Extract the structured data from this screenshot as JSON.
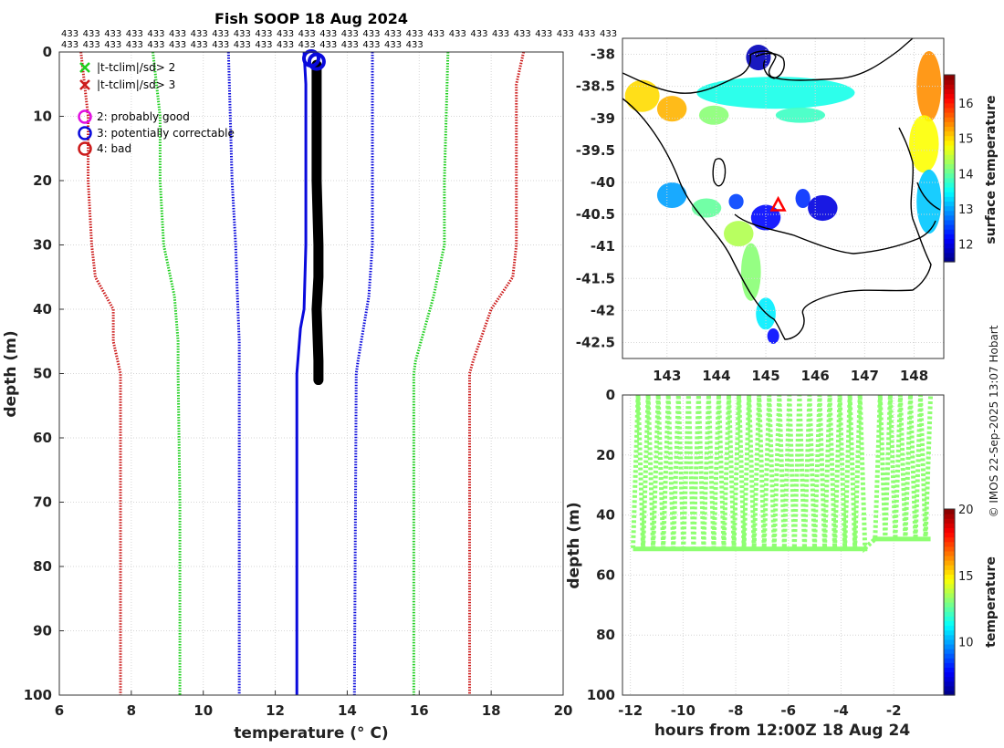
{
  "credit": "© IMOS 22-Sep-2025 13:07 Hobart",
  "colors": {
    "green": "#1fcf1f",
    "blue": "#0a0adc",
    "red": "#cc1b1b",
    "magenta": "#e010e0",
    "land": "#000000"
  },
  "chart_data": [
    {
      "id": "profile",
      "type": "line",
      "title": "Fish SOOP 18 Aug 2024",
      "xlabel": "temperature (° C)",
      "ylabel": "depth (m)",
      "xlim": [
        6,
        20
      ],
      "ylim": [
        0,
        100
      ],
      "y_reversed": true,
      "xticks": [
        "6",
        "8",
        "10",
        "12",
        "14",
        "16",
        "18",
        "20"
      ],
      "yticks": [
        "0",
        "10",
        "20",
        "30",
        "40",
        "50",
        "60",
        "70",
        "80",
        "90",
        "100"
      ],
      "count_rows": [
        [
          "433",
          "433",
          "433",
          "433",
          "433",
          "433",
          "433",
          "433",
          "433",
          "433",
          "433",
          "433",
          "433",
          "433",
          "433",
          "433",
          "433",
          "433",
          "433",
          "433",
          "433",
          "433",
          "433",
          "433",
          "433",
          "433"
        ],
        [
          "433",
          "433",
          "433",
          "433",
          "433",
          "433",
          "433",
          "433",
          "433",
          "433",
          "433",
          "433",
          "433",
          "433",
          "433",
          "433",
          "433"
        ]
      ],
      "legend": [
        {
          "marker": "x",
          "color": "green",
          "label": "|t-tclim|/sd> 2"
        },
        {
          "marker": "x",
          "color": "red",
          "label": "|t-tclim|/sd> 3"
        },
        {
          "marker": "o",
          "color": "magenta",
          "label": "2: probably good"
        },
        {
          "marker": "o",
          "color": "blue",
          "label": "3: potentially correctable"
        },
        {
          "marker": "o",
          "color": "red",
          "label": "4: bad"
        }
      ],
      "series": [
        {
          "name": "clim -3sd",
          "color": "red",
          "style": "dotted",
          "x": [
            6.6,
            6.8,
            6.8,
            6.9,
            7.0,
            7.5,
            7.5,
            7.7,
            7.7,
            7.7
          ],
          "y": [
            0,
            10,
            20,
            30,
            35,
            40,
            45,
            50,
            70,
            100
          ]
        },
        {
          "name": "clim -2sd",
          "color": "green",
          "style": "dotted",
          "x": [
            8.6,
            8.8,
            8.8,
            8.9,
            9.2,
            9.3,
            9.3,
            9.35,
            9.35
          ],
          "y": [
            0,
            10,
            20,
            30,
            38,
            45,
            50,
            70,
            100
          ]
        },
        {
          "name": "clim -1sd",
          "color": "blue",
          "style": "dotted",
          "x": [
            10.7,
            10.75,
            10.8,
            10.9,
            10.95,
            11.0,
            11.0,
            11.0
          ],
          "y": [
            0,
            10,
            20,
            30,
            38,
            45,
            50,
            100
          ]
        },
        {
          "name": "clim +1sd",
          "color": "blue",
          "style": "dotted",
          "x": [
            14.7,
            14.7,
            14.7,
            14.7,
            14.6,
            14.3,
            14.25,
            14.2
          ],
          "y": [
            0,
            10,
            20,
            30,
            38,
            48,
            50,
            100
          ]
        },
        {
          "name": "clim +2sd",
          "color": "green",
          "style": "dotted",
          "x": [
            16.8,
            16.75,
            16.7,
            16.7,
            16.4,
            15.9,
            15.85,
            15.85
          ],
          "y": [
            0,
            10,
            20,
            30,
            38,
            48,
            50,
            100
          ]
        },
        {
          "name": "clim +3sd",
          "color": "red",
          "style": "dotted",
          "x": [
            18.9,
            18.7,
            18.7,
            18.7,
            18.6,
            18.0,
            17.5,
            17.4,
            17.4
          ],
          "y": [
            0,
            5,
            20,
            30,
            35,
            40,
            48,
            50,
            100
          ]
        },
        {
          "name": "mean climatology",
          "color": "blue",
          "style": "solid",
          "x": [
            12.8,
            12.85,
            12.85,
            12.85,
            12.8,
            12.7,
            12.6,
            12.6,
            12.6
          ],
          "y": [
            0,
            5,
            20,
            30,
            40,
            43,
            50,
            90,
            100
          ]
        },
        {
          "name": "observed temperature",
          "color": "#000000",
          "style": "thick",
          "x": [
            13.15,
            13.15,
            13.15,
            13.2,
            13.2,
            13.15,
            13.2,
            13.2
          ],
          "y": [
            2,
            10,
            20,
            30,
            35,
            40,
            48,
            51
          ]
        }
      ],
      "flags": [
        {
          "label": "3: potentially correctable",
          "color": "blue",
          "x": 13.0,
          "y": 1.0
        },
        {
          "label": "3: potentially correctable",
          "color": "blue",
          "x": 13.15,
          "y": 1.5
        }
      ]
    },
    {
      "id": "sst_map",
      "type": "heatmap",
      "xticks": [
        "143",
        "144",
        "145",
        "146",
        "147",
        "148"
      ],
      "yticks": [
        "-38",
        "-38.5",
        "-39",
        "-39.5",
        "-40",
        "-40.5",
        "-41",
        "-41.5",
        "-42",
        "-42.5"
      ],
      "xlim": [
        142.1,
        148.6
      ],
      "ylim": [
        -42.75,
        -37.75
      ],
      "colorbar": {
        "label": "surface temperature",
        "range": [
          11.5,
          16.8
        ],
        "ticks": [
          "12",
          "13",
          "14",
          "15",
          "16"
        ]
      },
      "station_marker": {
        "label": "station",
        "lon": 145.25,
        "lat": -40.35
      },
      "sst_patches": [
        {
          "lon": 144.85,
          "lat": -38.05,
          "rx": 0.25,
          "ry": 0.2,
          "temp": 11.8
        },
        {
          "lon": 145.2,
          "lat": -38.6,
          "rx": 1.6,
          "ry": 0.25,
          "temp": 13.6
        },
        {
          "lon": 142.5,
          "lat": -38.65,
          "rx": 0.35,
          "ry": 0.25,
          "temp": 15.0
        },
        {
          "lon": 143.1,
          "lat": -38.85,
          "rx": 0.3,
          "ry": 0.2,
          "temp": 15.2
        },
        {
          "lon": 143.95,
          "lat": -38.95,
          "rx": 0.3,
          "ry": 0.15,
          "temp": 14.2
        },
        {
          "lon": 145.7,
          "lat": -38.95,
          "rx": 0.5,
          "ry": 0.12,
          "temp": 13.8
        },
        {
          "lon": 148.3,
          "lat": -38.5,
          "rx": 0.25,
          "ry": 0.55,
          "temp": 15.4
        },
        {
          "lon": 148.2,
          "lat": -39.4,
          "rx": 0.3,
          "ry": 0.45,
          "temp": 14.8
        },
        {
          "lon": 148.3,
          "lat": -40.3,
          "rx": 0.25,
          "ry": 0.5,
          "temp": 13.2
        },
        {
          "lon": 143.1,
          "lat": -40.2,
          "rx": 0.3,
          "ry": 0.2,
          "temp": 13.0
        },
        {
          "lon": 143.8,
          "lat": -40.4,
          "rx": 0.3,
          "ry": 0.15,
          "temp": 14.0
        },
        {
          "lon": 144.4,
          "lat": -40.3,
          "rx": 0.15,
          "ry": 0.12,
          "temp": 12.5
        },
        {
          "lon": 145.0,
          "lat": -40.55,
          "rx": 0.3,
          "ry": 0.2,
          "temp": 12.2
        },
        {
          "lon": 145.75,
          "lat": -40.25,
          "rx": 0.15,
          "ry": 0.15,
          "temp": 12.4
        },
        {
          "lon": 146.15,
          "lat": -40.4,
          "rx": 0.3,
          "ry": 0.2,
          "temp": 12.0
        },
        {
          "lon": 144.45,
          "lat": -40.8,
          "rx": 0.3,
          "ry": 0.2,
          "temp": 14.4
        },
        {
          "lon": 144.7,
          "lat": -41.4,
          "rx": 0.2,
          "ry": 0.45,
          "temp": 14.2
        },
        {
          "lon": 145.0,
          "lat": -42.05,
          "rx": 0.2,
          "ry": 0.25,
          "temp": 13.4
        },
        {
          "lon": 145.15,
          "lat": -42.4,
          "rx": 0.12,
          "ry": 0.12,
          "temp": 12.2
        }
      ]
    },
    {
      "id": "track",
      "type": "scatter",
      "xlabel": "hours from 12:00Z 18 Aug 24",
      "ylabel": "depth (m)",
      "xlim": [
        -12.3,
        -0.1
      ],
      "ylim": [
        0,
        100
      ],
      "y_reversed": true,
      "xticks": [
        "-12",
        "-10",
        "-8",
        "-6",
        "-4",
        "-2"
      ],
      "yticks": [
        "0",
        "20",
        "40",
        "60",
        "80",
        "100"
      ],
      "colorbar": {
        "label": "temperature",
        "range": [
          6,
          20
        ],
        "ticks": [
          "10",
          "15",
          "20"
        ]
      },
      "profiles": {
        "t_start": -11.9,
        "t_end": -0.6,
        "count": 60,
        "gap": [
          -3.0,
          -2.8
        ],
        "min_depth": 0,
        "max_depth_early": 51,
        "max_depth_late": 48,
        "temp": 13.2
      }
    }
  ]
}
